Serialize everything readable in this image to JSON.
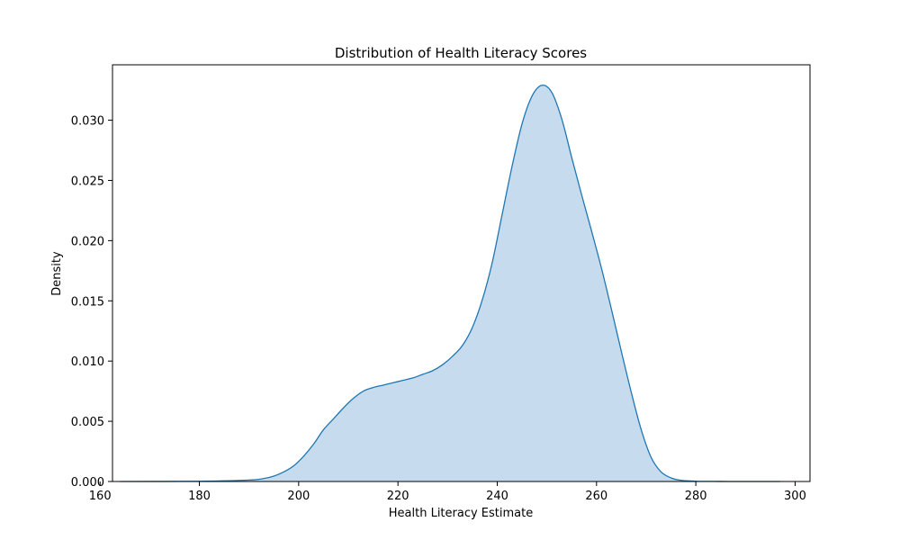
{
  "chart_data": {
    "type": "area",
    "title": "Distribution of Health Literacy Scores",
    "xlabel": "Health Literacy Estimate",
    "ylabel": "Density",
    "xlim": [
      162.5,
      303
    ],
    "ylim": [
      0,
      0.0346
    ],
    "xticks": [
      160,
      180,
      200,
      220,
      240,
      260,
      280,
      300
    ],
    "yticks": [
      0.0,
      0.005,
      0.01,
      0.015,
      0.02,
      0.025,
      0.03
    ],
    "ytick_labels": [
      "0.000",
      "0.005",
      "0.010",
      "0.015",
      "0.020",
      "0.025",
      "0.030"
    ],
    "grid": false,
    "legend": "none",
    "colors": {
      "line": "#1f77b4",
      "fill": "#c6dbed"
    },
    "series": [
      {
        "x": [
          164,
          180,
          190,
          193,
          195,
          197,
          199,
          201,
          203,
          205,
          207,
          209,
          211,
          213,
          215,
          217,
          219,
          221,
          223,
          225,
          227,
          229,
          231,
          233,
          235,
          237,
          239,
          241,
          243,
          245,
          247,
          249,
          251,
          253,
          255,
          257,
          259,
          261,
          263,
          265,
          267,
          269,
          271,
          273,
          275,
          277,
          280,
          285,
          290,
          297
        ],
        "y": [
          0,
          2e-05,
          0.00012,
          0.00025,
          0.00045,
          0.0008,
          0.0013,
          0.0021,
          0.0031,
          0.0043,
          0.0052,
          0.0061,
          0.0069,
          0.0075,
          0.0078,
          0.008,
          0.0082,
          0.0084,
          0.0086,
          0.0089,
          0.0092,
          0.0097,
          0.0104,
          0.0113,
          0.0128,
          0.0151,
          0.0182,
          0.0222,
          0.0262,
          0.0297,
          0.032,
          0.0329,
          0.0323,
          0.0301,
          0.0269,
          0.0238,
          0.0208,
          0.0177,
          0.0143,
          0.0108,
          0.0074,
          0.0043,
          0.002,
          0.0008,
          0.0003,
          0.0001,
          2e-05,
          5e-06,
          1e-06,
          0
        ]
      }
    ]
  }
}
